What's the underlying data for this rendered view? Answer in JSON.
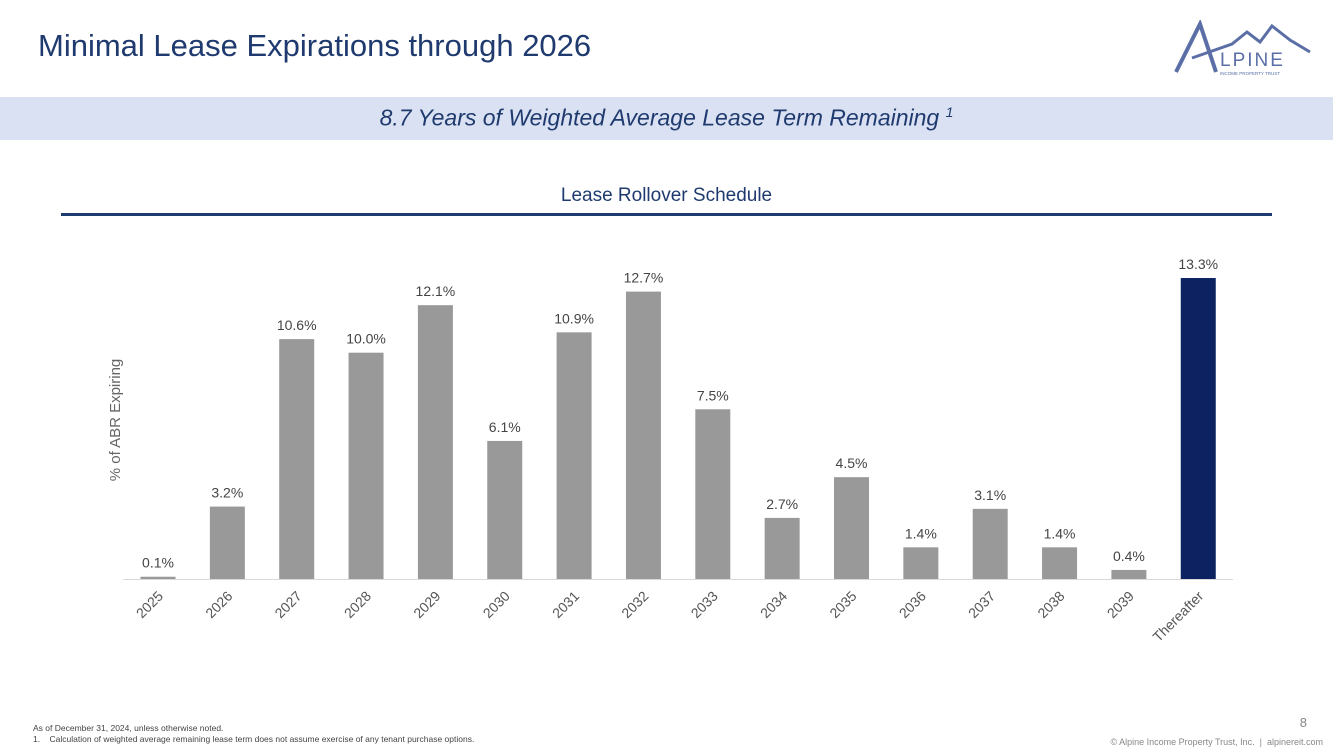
{
  "header": {
    "title": "Minimal Lease Expirations through 2026",
    "logo_text": "ALPINE",
    "logo_subtext": "INCOME PROPERTY TRUST"
  },
  "banner": {
    "text": "8.7 Years of Weighted Average Lease Term Remaining",
    "footnote_ref": "1"
  },
  "colors": {
    "bar": "#999999",
    "highlight": "#0c2261",
    "accent": "#1f3a6e",
    "banner_bg": "#d9e1f2"
  },
  "chart_data": {
    "type": "bar",
    "title": "Lease Rollover Schedule",
    "ylabel": "% of ABR Expiring",
    "xlabel": "",
    "categories": [
      "2025",
      "2026",
      "2027",
      "2028",
      "2029",
      "2030",
      "2031",
      "2032",
      "2033",
      "2034",
      "2035",
      "2036",
      "2037",
      "2038",
      "2039",
      "Thereafter"
    ],
    "values": [
      0.1,
      3.2,
      10.6,
      10.0,
      12.1,
      6.1,
      10.9,
      12.7,
      7.5,
      2.7,
      4.5,
      1.4,
      3.1,
      1.4,
      0.4,
      13.3
    ],
    "data_labels": [
      "0.1%",
      "3.2%",
      "10.6%",
      "10.0%",
      "12.1%",
      "6.1%",
      "10.9%",
      "12.7%",
      "7.5%",
      "2.7%",
      "4.5%",
      "1.4%",
      "3.1%",
      "1.4%",
      "0.4%",
      "13.3%"
    ],
    "highlighted_category": "Thereafter",
    "grid": false
  },
  "footer": {
    "note": "As of December 31, 2024, unless otherwise noted.",
    "footnote": "1.    Calculation of weighted average remaining lease term does not assume exercise of any tenant purchase options.",
    "page_number": "8",
    "copyright": "© Alpine Income Property Trust, Inc.  |  alpinereit.com"
  }
}
